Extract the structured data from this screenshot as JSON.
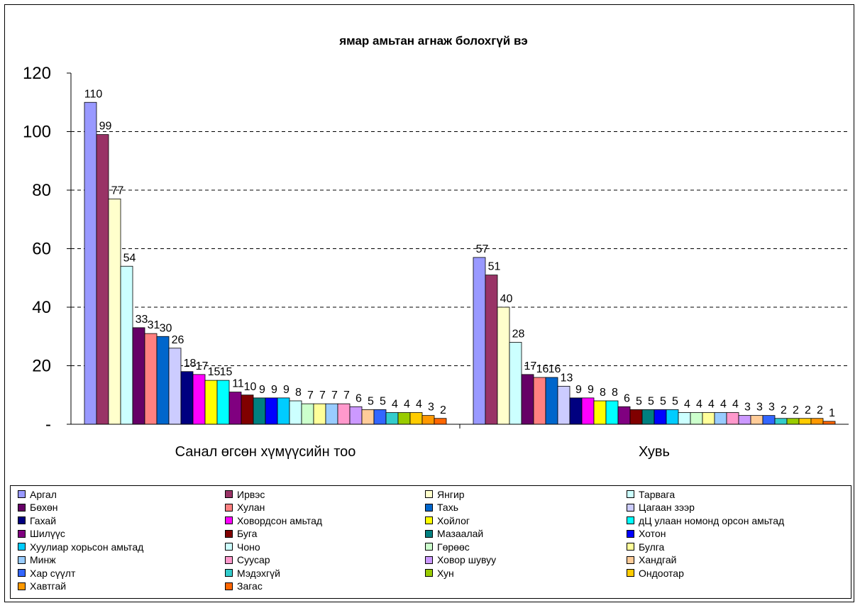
{
  "chart_data": {
    "type": "bar",
    "title": "ямар амьтан агнаж болохгүй вэ",
    "xlabel": "",
    "ylabel": "",
    "ylim": [
      0,
      120
    ],
    "yticks": [
      0,
      20,
      40,
      60,
      80,
      100,
      120
    ],
    "ytick_labels": [
      "-",
      "20",
      "40",
      "60",
      "80",
      "100",
      "120"
    ],
    "grid": "horizontal dashed",
    "legend_position": "bottom",
    "categories": [
      "Санал өгсөн хүмүүсийн тоо",
      "Хувь"
    ],
    "series": [
      {
        "name": "Аргал",
        "color": "#9999ff",
        "values": [
          110,
          57
        ]
      },
      {
        "name": "Ирвэс",
        "color": "#993366",
        "values": [
          99,
          51
        ]
      },
      {
        "name": "Янгир",
        "color": "#ffffcc",
        "values": [
          77,
          40
        ]
      },
      {
        "name": "Тарвага",
        "color": "#ccffff",
        "values": [
          54,
          28
        ]
      },
      {
        "name": "Бөхөн",
        "color": "#660066",
        "values": [
          33,
          17
        ]
      },
      {
        "name": "Хулан",
        "color": "#ff8080",
        "values": [
          31,
          16
        ]
      },
      {
        "name": "Тахь",
        "color": "#0066cc",
        "values": [
          30,
          16
        ]
      },
      {
        "name": "Цагаан зээр",
        "color": "#ccccff",
        "values": [
          26,
          13
        ]
      },
      {
        "name": "Гахай",
        "color": "#000080",
        "values": [
          18,
          9
        ]
      },
      {
        "name": "Ховордсон амьтад",
        "color": "#ff00ff",
        "values": [
          17,
          9
        ]
      },
      {
        "name": "Хойлог",
        "color": "#ffff00",
        "values": [
          15,
          8
        ]
      },
      {
        "name": "дЦ улаан номонд орсон амьтад",
        "color": "#00ffff",
        "values": [
          15,
          8
        ]
      },
      {
        "name": "Шилүүс",
        "color": "#800080",
        "values": [
          11,
          6
        ]
      },
      {
        "name": "Буга",
        "color": "#800000",
        "values": [
          10,
          5
        ]
      },
      {
        "name": "Мазаалай",
        "color": "#008080",
        "values": [
          9,
          5
        ]
      },
      {
        "name": "Хотон",
        "color": "#0000ff",
        "values": [
          9,
          5
        ]
      },
      {
        "name": "Хуулиар хорьсон амьтад",
        "color": "#00ccff",
        "values": [
          9,
          5
        ]
      },
      {
        "name": "Чоно",
        "color": "#ccffff",
        "values": [
          8,
          4
        ]
      },
      {
        "name": "Гөрөөс",
        "color": "#ccffcc",
        "values": [
          7,
          4
        ]
      },
      {
        "name": "Булга",
        "color": "#ffff99",
        "values": [
          7,
          4
        ]
      },
      {
        "name": "Минж",
        "color": "#99ccff",
        "values": [
          7,
          4
        ]
      },
      {
        "name": "Суусар",
        "color": "#ff99cc",
        "values": [
          7,
          4
        ]
      },
      {
        "name": "Ховор шувуу",
        "color": "#cc99ff",
        "values": [
          6,
          3
        ]
      },
      {
        "name": "Хандгай",
        "color": "#ffcc99",
        "values": [
          5,
          3
        ]
      },
      {
        "name": "Хар сүүлт",
        "color": "#3366ff",
        "values": [
          5,
          3
        ]
      },
      {
        "name": "Мэдэхгүй",
        "color": "#33cccc",
        "values": [
          4,
          2
        ]
      },
      {
        "name": "Хун",
        "color": "#99cc00",
        "values": [
          4,
          2
        ]
      },
      {
        "name": "Ондоотар",
        "color": "#ffcc00",
        "values": [
          4,
          2
        ]
      },
      {
        "name": "Хавтгай",
        "color": "#ff9900",
        "values": [
          3,
          2
        ]
      },
      {
        "name": "Загас",
        "color": "#ff6600",
        "values": [
          2,
          1
        ]
      }
    ]
  }
}
